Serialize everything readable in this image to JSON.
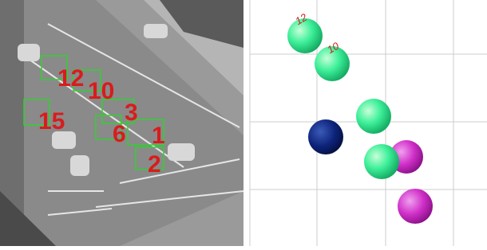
{
  "left_panel": {
    "labels": [
      "12",
      "10",
      "15",
      "3",
      "6",
      "1",
      "2"
    ]
  },
  "right_panel": {
    "labels": [
      "12",
      "10"
    ]
  }
}
